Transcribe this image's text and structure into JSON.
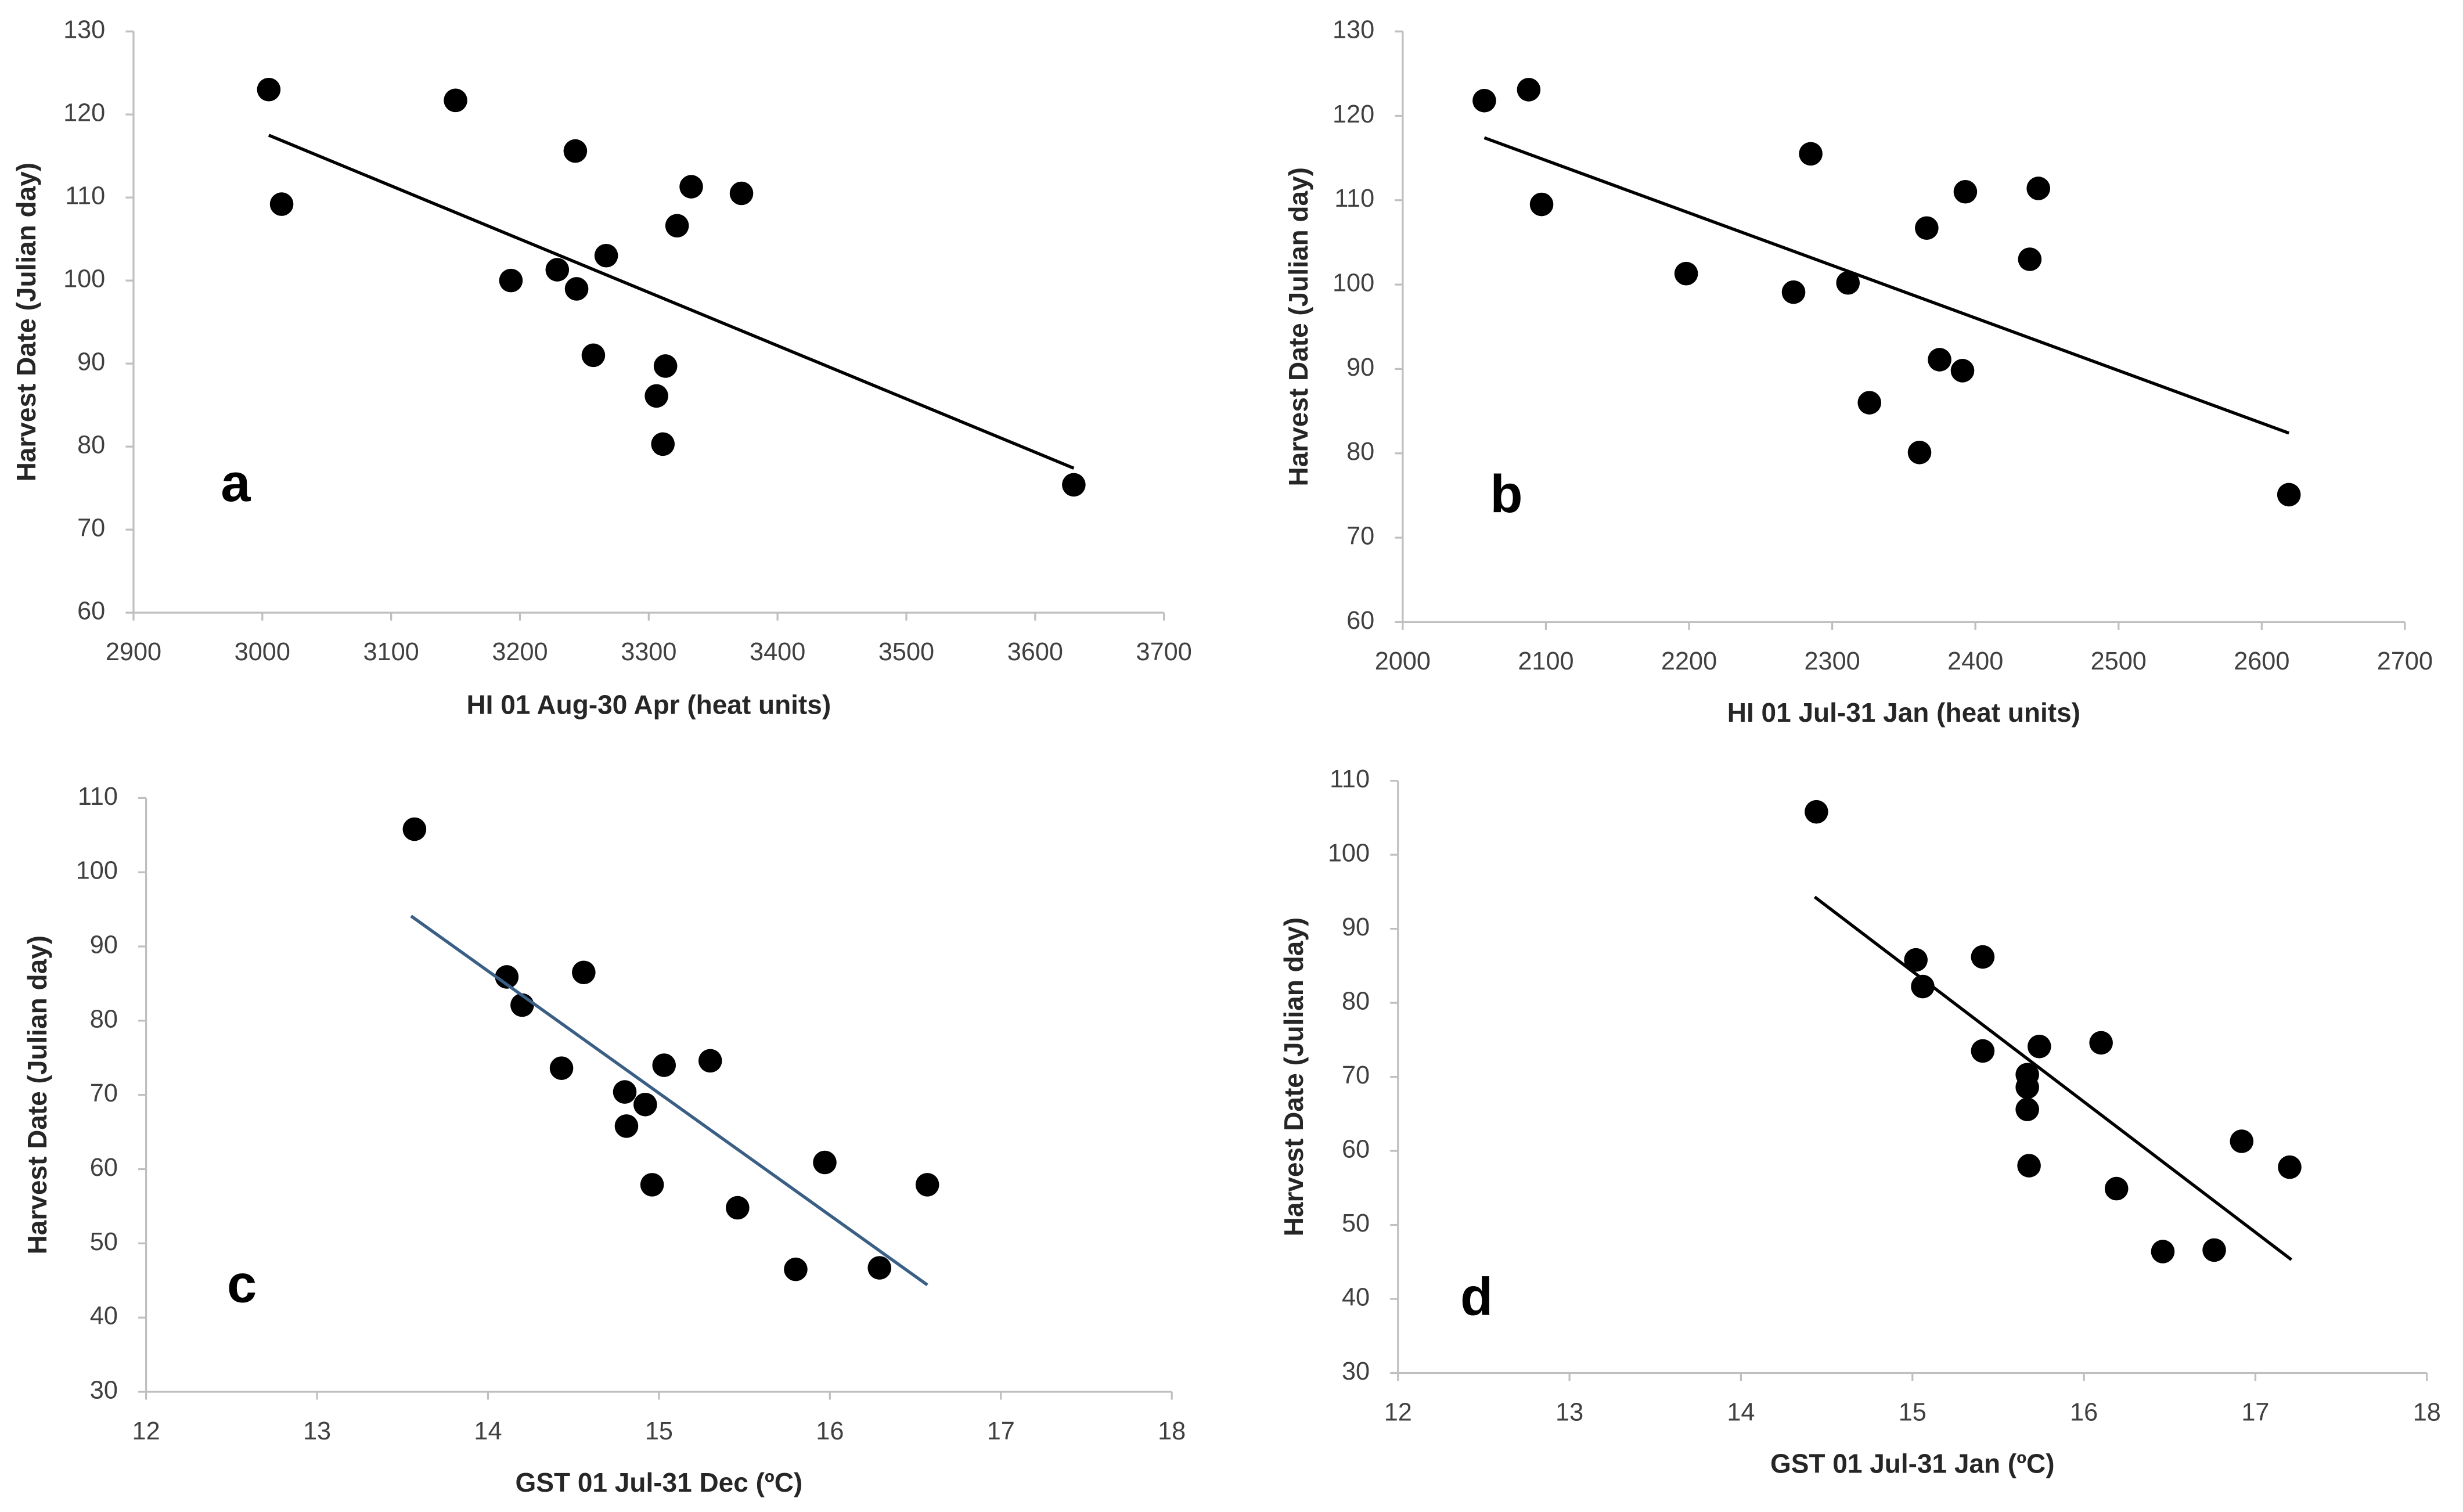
{
  "chart_data": [
    {
      "type": "scatter",
      "x_label": "HI 01 Aug-30 Apr (heat units)",
      "y_label": "Harvest Date (Julian day)",
      "annotation": "a",
      "x": [
        3005,
        3015,
        3150,
        3243,
        3193,
        3229,
        3244,
        3267,
        3257,
        3333,
        3372,
        3322,
        3313,
        3306,
        3311,
        3630
      ],
      "y": [
        123,
        109.2,
        121.7,
        115.6,
        100,
        101.3,
        99,
        103,
        91,
        111.3,
        110.5,
        106.6,
        89.7,
        86.1,
        80.3,
        75.4
      ],
      "color": "#000000",
      "trend_line": {
        "x": [
          3005,
          3630
        ],
        "y": [
          117.5,
          77.4
        ],
        "color": "#000000"
      },
      "xlim": [
        2900,
        3700
      ],
      "xticks": [
        2900,
        3000,
        3100,
        3200,
        3300,
        3400,
        3500,
        3600,
        3700
      ],
      "ylim": [
        60,
        130
      ],
      "yticks": [
        60,
        70,
        80,
        90,
        100,
        110,
        120,
        130
      ]
    },
    {
      "type": "scatter",
      "x_label": "HI 01 Jul-31 Jan (heat units)",
      "y_label": "Harvest Date (Julian day)",
      "annotation": "b",
      "x": [
        2057,
        2088,
        2097,
        2198,
        2273,
        2285,
        2311,
        2326,
        2361,
        2366,
        2375,
        2391,
        2393,
        2438,
        2444,
        2619
      ],
      "y": [
        121.8,
        123.1,
        109.5,
        101.3,
        99.1,
        115.5,
        100.2,
        86,
        80.1,
        106.7,
        91.1,
        89.8,
        111,
        103,
        111.4,
        75.1
      ],
      "color": "#000000",
      "trend_line": {
        "x": [
          2057,
          2619
        ],
        "y": [
          117.4,
          82.4
        ],
        "color": "#000000"
      },
      "xlim": [
        2000,
        2700
      ],
      "xticks": [
        2000,
        2100,
        2200,
        2300,
        2400,
        2500,
        2600,
        2700
      ],
      "ylim": [
        60,
        130
      ],
      "yticks": [
        60,
        70,
        80,
        90,
        100,
        110,
        120,
        130
      ]
    },
    {
      "type": "scatter",
      "x_label": "GST 01 Jul-31 Dec (ºC)",
      "y_label": "Harvest Date (Julian day)",
      "annotation": "c",
      "x": [
        13.57,
        14.11,
        14.2,
        14.43,
        14.56,
        14.8,
        14.81,
        14.92,
        15.03,
        14.96,
        15.3,
        15.46,
        15.97,
        15.8,
        16.29,
        16.57
      ],
      "y": [
        105.8,
        85.9,
        82.1,
        73.6,
        86.5,
        70.4,
        65.8,
        68.7,
        74,
        57.9,
        74.6,
        54.8,
        60.9,
        46.5,
        46.7,
        57.9
      ],
      "color": "#000000",
      "trend_line": {
        "x": [
          13.55,
          16.57
        ],
        "y": [
          94.1,
          44.4
        ],
        "color": "#3a5f85"
      },
      "xlim": [
        12,
        18
      ],
      "xticks": [
        12,
        13,
        14,
        15,
        16,
        17,
        18
      ],
      "ylim": [
        30,
        110
      ],
      "yticks": [
        30,
        40,
        50,
        60,
        70,
        80,
        90,
        100,
        110
      ]
    },
    {
      "type": "scatter",
      "x_label": "GST 01 Jul-31 Jan (ºC)",
      "y_label": "Harvest Date (Julian day)",
      "annotation": "d",
      "x": [
        14.44,
        15.02,
        15.06,
        15.41,
        15.41,
        15.67,
        15.67,
        15.67,
        15.68,
        15.74,
        16.1,
        16.19,
        16.46,
        16.76,
        16.92,
        17.2
      ],
      "y": [
        105.8,
        85.8,
        82.2,
        86.2,
        73.5,
        70.3,
        68.6,
        65.6,
        58,
        74.1,
        74.6,
        54.9,
        46.4,
        46.6,
        61.3,
        57.8
      ],
      "color": "#000000",
      "trend_line": {
        "x": [
          14.43,
          17.21
        ],
        "y": [
          94.3,
          45.3
        ],
        "color": "#000000"
      },
      "xlim": [
        12,
        18
      ],
      "xticks": [
        12,
        13,
        14,
        15,
        16,
        17,
        18
      ],
      "ylim": [
        30,
        110
      ],
      "yticks": [
        30,
        40,
        50,
        60,
        70,
        80,
        90,
        100,
        110
      ]
    }
  ]
}
